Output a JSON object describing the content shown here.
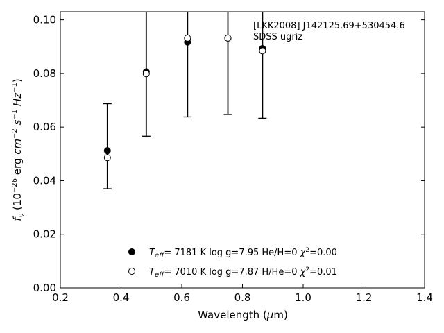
{
  "chart_data": {
    "type": "scatter",
    "xlabel": "Wavelength (μm)",
    "ylabel": "f_ν (10^-26 erg cm^-2 s^-1 Hz^-1)",
    "xlim": [
      0.2,
      1.4
    ],
    "ylim": [
      0.0,
      0.103
    ],
    "xticks": [
      0.2,
      0.4,
      0.6,
      0.8,
      1.0,
      1.2,
      1.4
    ],
    "xtick_labels": [
      "0.2",
      "0.4",
      "0.6",
      "0.8",
      "1.0",
      "1.2",
      "1.4"
    ],
    "yticks": [
      0.0,
      0.02,
      0.04,
      0.06,
      0.08,
      0.1
    ],
    "ytick_labels": [
      "0.00",
      "0.02",
      "0.04",
      "0.06",
      "0.08",
      "0.10"
    ],
    "grid": false,
    "legend_position": "bottom-center",
    "annotation": [
      "[LKK2008] J142125.69+530454.6",
      "SDSS ugriz"
    ],
    "errorbars": [
      {
        "x": 0.355,
        "low": 0.037,
        "high": 0.0687
      },
      {
        "x": 0.483,
        "low": 0.0566,
        "high": 0.104
      },
      {
        "x": 0.619,
        "low": 0.0638,
        "high": 0.104
      },
      {
        "x": 0.752,
        "low": 0.0647,
        "high": 0.104
      },
      {
        "x": 0.866,
        "low": 0.0633,
        "high": 0.104
      }
    ],
    "series": [
      {
        "label": "T_eff= 7181 K log g=7.95 He/H=0 χ²=0.00",
        "marker": "filled",
        "x": [
          0.355,
          0.483,
          0.619,
          0.752,
          0.866
        ],
        "y": [
          0.0512,
          0.0806,
          0.0917,
          0.0932,
          0.0893
        ]
      },
      {
        "label": "T_eff= 7010 K log g=7.87 H/He=0 χ²=0.01",
        "marker": "open",
        "x": [
          0.355,
          0.483,
          0.619,
          0.752,
          0.866
        ],
        "y": [
          0.0486,
          0.0799,
          0.0932,
          0.0932,
          0.0884
        ]
      }
    ]
  }
}
